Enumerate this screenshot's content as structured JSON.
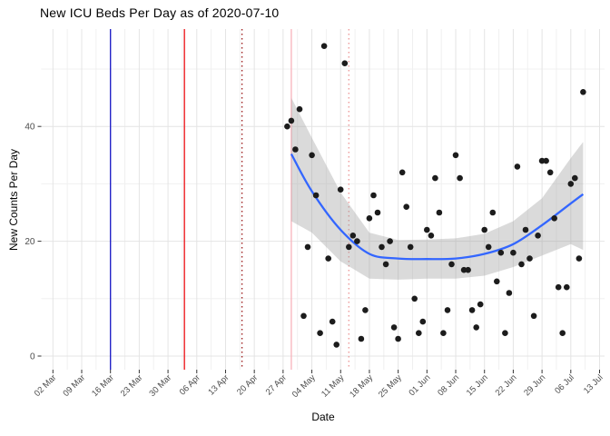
{
  "chart_data": {
    "type": "scatter",
    "title": "New ICU Beds Per Day as of 2020-07-10",
    "xlabel": "Date",
    "ylabel": "New Counts Per Day",
    "legend": "none",
    "grid": true,
    "ylim": [
      0,
      57
    ],
    "y_ticks": [
      {
        "value": 0,
        "label": "0"
      },
      {
        "value": 20,
        "label": "20"
      },
      {
        "value": 40,
        "label": "40"
      }
    ],
    "y_minor_ticks": [
      10,
      30,
      50
    ],
    "x_ticks": [
      {
        "date": "2020-03-02",
        "label": "02 Mar"
      },
      {
        "date": "2020-03-09",
        "label": "09 Mar"
      },
      {
        "date": "2020-03-16",
        "label": "16 Mar"
      },
      {
        "date": "2020-03-23",
        "label": "23 Mar"
      },
      {
        "date": "2020-03-30",
        "label": "30 Mar"
      },
      {
        "date": "2020-04-06",
        "label": "06 Apr"
      },
      {
        "date": "2020-04-13",
        "label": "13 Apr"
      },
      {
        "date": "2020-04-20",
        "label": "20 Apr"
      },
      {
        "date": "2020-04-27",
        "label": "27 Apr"
      },
      {
        "date": "2020-05-04",
        "label": "04 May"
      },
      {
        "date": "2020-05-11",
        "label": "11 May"
      },
      {
        "date": "2020-05-18",
        "label": "18 May"
      },
      {
        "date": "2020-05-25",
        "label": "25 May"
      },
      {
        "date": "2020-06-01",
        "label": "01 Jun"
      },
      {
        "date": "2020-06-08",
        "label": "08 Jun"
      },
      {
        "date": "2020-06-15",
        "label": "15 Jun"
      },
      {
        "date": "2020-06-22",
        "label": "22 Jun"
      },
      {
        "date": "2020-06-29",
        "label": "29 Jun"
      },
      {
        "date": "2020-07-06",
        "label": "06 Jul"
      },
      {
        "date": "2020-07-13",
        "label": "13 Jul"
      }
    ],
    "reference_lines": [
      {
        "name": "vline-blue-solid",
        "date": "2020-03-16",
        "color": "#2323C8",
        "style": "solid"
      },
      {
        "name": "vline-red-solid",
        "date": "2020-04-03",
        "color": "#ED2024",
        "style": "solid"
      },
      {
        "name": "vline-darkred-dotted",
        "date": "2020-04-17",
        "color": "#9E1F1F",
        "style": "dotted"
      },
      {
        "name": "vline-pink-solid",
        "date": "2020-04-29",
        "color": "#F8B8C0",
        "style": "solid"
      },
      {
        "name": "vline-lightred-dotted",
        "date": "2020-05-13",
        "color": "#EE9C9C",
        "style": "dotted"
      }
    ],
    "points": [
      [
        "2020-04-28",
        40
      ],
      [
        "2020-04-29",
        41
      ],
      [
        "2020-04-30",
        36
      ],
      [
        "2020-05-01",
        43
      ],
      [
        "2020-05-02",
        7
      ],
      [
        "2020-05-03",
        19
      ],
      [
        "2020-05-04",
        35
      ],
      [
        "2020-05-05",
        28
      ],
      [
        "2020-05-06",
        4
      ],
      [
        "2020-05-07",
        54
      ],
      [
        "2020-05-08",
        17
      ],
      [
        "2020-05-09",
        6
      ],
      [
        "2020-05-10",
        2
      ],
      [
        "2020-05-11",
        29
      ],
      [
        "2020-05-12",
        51
      ],
      [
        "2020-05-13",
        19
      ],
      [
        "2020-05-14",
        21
      ],
      [
        "2020-05-15",
        20
      ],
      [
        "2020-05-16",
        3
      ],
      [
        "2020-05-17",
        8
      ],
      [
        "2020-05-18",
        24
      ],
      [
        "2020-05-19",
        28
      ],
      [
        "2020-05-20",
        25
      ],
      [
        "2020-05-21",
        19
      ],
      [
        "2020-05-22",
        16
      ],
      [
        "2020-05-23",
        20
      ],
      [
        "2020-05-24",
        5
      ],
      [
        "2020-05-25",
        3
      ],
      [
        "2020-05-26",
        32
      ],
      [
        "2020-05-27",
        26
      ],
      [
        "2020-05-28",
        19
      ],
      [
        "2020-05-29",
        10
      ],
      [
        "2020-05-30",
        4
      ],
      [
        "2020-05-31",
        6
      ],
      [
        "2020-06-01",
        22
      ],
      [
        "2020-06-02",
        21
      ],
      [
        "2020-06-03",
        31
      ],
      [
        "2020-06-04",
        25
      ],
      [
        "2020-06-05",
        4
      ],
      [
        "2020-06-06",
        8
      ],
      [
        "2020-06-07",
        16
      ],
      [
        "2020-06-08",
        35
      ],
      [
        "2020-06-09",
        31
      ],
      [
        "2020-06-10",
        15
      ],
      [
        "2020-06-11",
        15
      ],
      [
        "2020-06-12",
        8
      ],
      [
        "2020-06-13",
        5
      ],
      [
        "2020-06-14",
        9
      ],
      [
        "2020-06-15",
        22
      ],
      [
        "2020-06-16",
        19
      ],
      [
        "2020-06-17",
        25
      ],
      [
        "2020-06-18",
        13
      ],
      [
        "2020-06-19",
        18
      ],
      [
        "2020-06-20",
        4
      ],
      [
        "2020-06-21",
        11
      ],
      [
        "2020-06-22",
        18
      ],
      [
        "2020-06-23",
        33
      ],
      [
        "2020-06-24",
        16
      ],
      [
        "2020-06-25",
        22
      ],
      [
        "2020-06-26",
        17
      ],
      [
        "2020-06-27",
        7
      ],
      [
        "2020-06-28",
        21
      ],
      [
        "2020-06-29",
        34
      ],
      [
        "2020-06-30",
        34
      ],
      [
        "2020-07-01",
        32
      ],
      [
        "2020-07-02",
        24
      ],
      [
        "2020-07-03",
        12
      ],
      [
        "2020-07-04",
        4
      ],
      [
        "2020-07-05",
        12
      ],
      [
        "2020-07-06",
        30
      ],
      [
        "2020-07-07",
        31
      ],
      [
        "2020-07-08",
        17
      ],
      [
        "2020-07-09",
        46
      ]
    ],
    "smooth_line": {
      "name": "loess-smooth",
      "values": [
        [
          "2020-04-29",
          35.2
        ],
        [
          "2020-05-04",
          28.7
        ],
        [
          "2020-05-11",
          22.0
        ],
        [
          "2020-05-18",
          17.8
        ],
        [
          "2020-05-25",
          17.0
        ],
        [
          "2020-06-01",
          16.9
        ],
        [
          "2020-06-08",
          17.0
        ],
        [
          "2020-06-15",
          17.8
        ],
        [
          "2020-06-22",
          19.5
        ],
        [
          "2020-06-29",
          22.8
        ],
        [
          "2020-07-06",
          26.6
        ],
        [
          "2020-07-09",
          28.2
        ]
      ]
    },
    "confidence_band": {
      "values": [
        [
          "2020-04-29",
          23.5,
          45.0
        ],
        [
          "2020-05-04",
          21.5,
          38.0
        ],
        [
          "2020-05-11",
          16.5,
          28.5
        ],
        [
          "2020-05-18",
          13.5,
          21.5
        ],
        [
          "2020-05-25",
          13.3,
          20.2
        ],
        [
          "2020-06-01",
          13.5,
          20.3
        ],
        [
          "2020-06-08",
          13.5,
          20.5
        ],
        [
          "2020-06-15",
          14.0,
          21.3
        ],
        [
          "2020-06-22",
          15.5,
          23.5
        ],
        [
          "2020-06-29",
          17.5,
          27.5
        ],
        [
          "2020-07-06",
          19.5,
          34.5
        ],
        [
          "2020-07-09",
          18.5,
          37.3
        ]
      ]
    },
    "style": {
      "point_color": "#1C1C1C",
      "smooth_color": "#3366FF",
      "band_color": "#9E9E9E",
      "band_opacity": 0.38,
      "grid_major": "#E4E4E4",
      "grid_minor": "#F0F0F0",
      "axis_tick_color": "#333333",
      "tick_label_color": "#4D4D4D",
      "title_color": "#000000"
    }
  }
}
